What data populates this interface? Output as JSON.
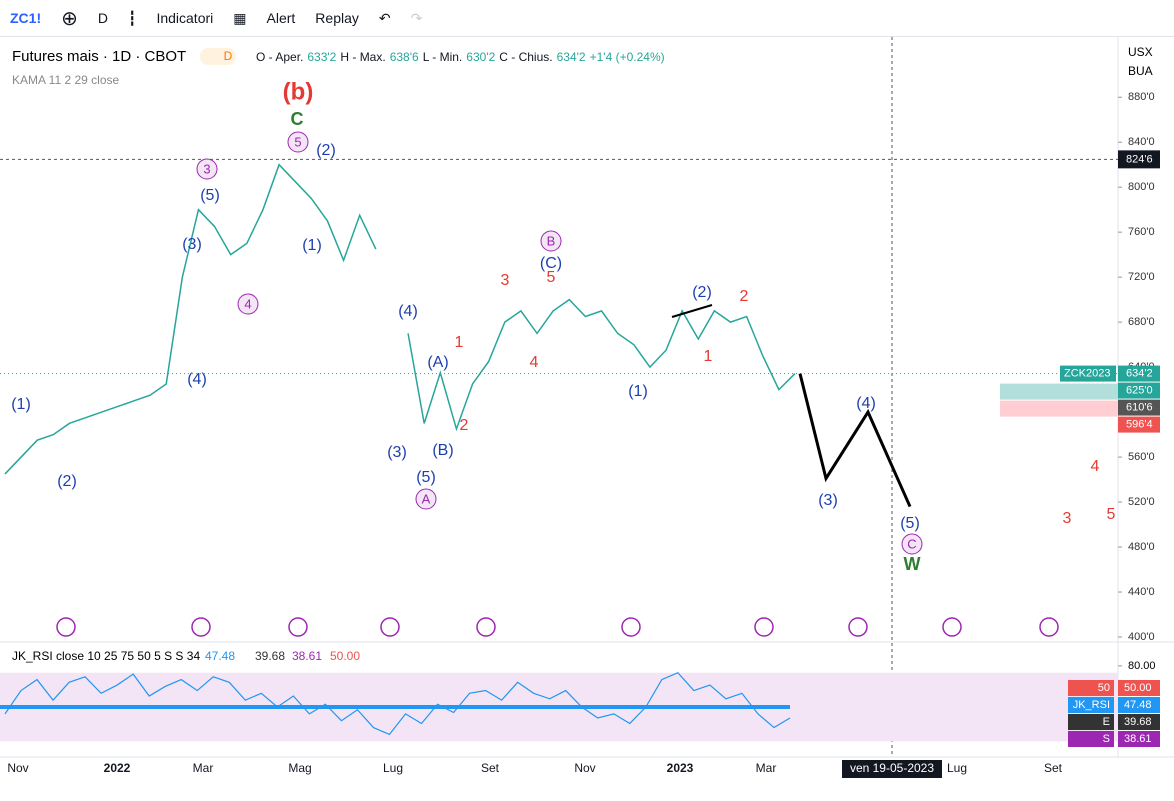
{
  "toolbar": {
    "symbol": "ZC1!",
    "interval": "D",
    "indicators": "Indicatori",
    "alert": "Alert",
    "replay": "Replay"
  },
  "legend": {
    "title": "Futures mais · 1D · CBOT",
    "badge": "D",
    "open_label": "O - Aper.",
    "open": "633'2",
    "high_label": "H - Max.",
    "high": "638'6",
    "low_label": "L - Min.",
    "low": "630'2",
    "close_label": "C - Chius.",
    "close": "634'2",
    "change": "+1'4 (+0.24%)",
    "indicator": "KAMA 11 2 29 close"
  },
  "price_axis": {
    "currency": "USX",
    "unit": "BUA",
    "ylim": [
      392,
      930
    ],
    "ticks": [
      {
        "value": 880,
        "label": "880'0"
      },
      {
        "value": 840,
        "label": "840'0"
      },
      {
        "value": 800,
        "label": "800'0"
      },
      {
        "value": 760,
        "label": "760'0"
      },
      {
        "value": 720,
        "label": "720'0"
      },
      {
        "value": 680,
        "label": "680'0"
      },
      {
        "value": 640,
        "label": "640'0"
      },
      {
        "value": 600,
        "label": "600'0"
      },
      {
        "value": 560,
        "label": "560'0"
      },
      {
        "value": 520,
        "label": "520'0"
      },
      {
        "value": 480,
        "label": "480'0"
      },
      {
        "value": 440,
        "label": "440'0"
      },
      {
        "value": 400,
        "label": "400'0"
      }
    ],
    "crosshair": {
      "value": 824.75,
      "label": "824'6"
    },
    "last": {
      "name": "ZCK2023",
      "value": 634.25,
      "label": "634'2"
    },
    "badges": [
      {
        "value": 625,
        "label": "625'0",
        "color": "#26a69a"
      },
      {
        "value": 610.75,
        "label": "610'6",
        "color": "#555555"
      },
      {
        "value": 596.5,
        "label": "596'4",
        "color": "#ef5350"
      }
    ]
  },
  "price_path": [
    545,
    560,
    575,
    580,
    590,
    595,
    600,
    605,
    610,
    615,
    625,
    720,
    780,
    765,
    740,
    750,
    780,
    820,
    805,
    790,
    770,
    735,
    775,
    745,
    null,
    670,
    590,
    635,
    585,
    625,
    645,
    680,
    690,
    670,
    690,
    700,
    685,
    690,
    670,
    660,
    640,
    655,
    690,
    665,
    690,
    680,
    685,
    650,
    620,
    634.25
  ],
  "projection": [
    634.25,
    541,
    600,
    516
  ],
  "annotations": [
    {
      "text": "(b)",
      "color": "#e53935",
      "big": true
    },
    {
      "text": "C",
      "color": "#2e7d32",
      "big": true
    },
    {
      "text": "5",
      "color": "#9c27b0",
      "circled": true
    },
    {
      "text": "(2)",
      "color": "#1e40af"
    },
    {
      "text": "3",
      "color": "#9c27b0",
      "circled": true
    },
    {
      "text": "(5)",
      "color": "#1e40af"
    },
    {
      "text": "(3)",
      "color": "#1e40af"
    },
    {
      "text": "(1)",
      "color": "#1e40af"
    },
    {
      "text": "4",
      "color": "#9c27b0",
      "circled": true
    },
    {
      "text": "(4)",
      "color": "#1e40af"
    },
    {
      "text": "(1)",
      "color": "#1e40af"
    },
    {
      "text": "(2)",
      "color": "#1e40af"
    },
    {
      "text": "(4)",
      "color": "#1e40af"
    },
    {
      "text": "1",
      "color": "#e53935"
    },
    {
      "text": "(A)",
      "color": "#1e40af"
    },
    {
      "text": "2",
      "color": "#e53935"
    },
    {
      "text": "(3)",
      "color": "#1e40af"
    },
    {
      "text": "(B)",
      "color": "#1e40af"
    },
    {
      "text": "(5)",
      "color": "#1e40af"
    },
    {
      "text": "A",
      "color": "#9c27b0",
      "circled": true
    },
    {
      "text": "3",
      "color": "#e53935"
    },
    {
      "text": "5",
      "color": "#e53935"
    },
    {
      "text": "B",
      "color": "#9c27b0",
      "circled": true
    },
    {
      "text": "(C)",
      "color": "#1e40af"
    },
    {
      "text": "4",
      "color": "#e53935"
    },
    {
      "text": "(1)",
      "color": "#1e40af"
    },
    {
      "text": "(2)",
      "color": "#1e40af"
    },
    {
      "text": "2",
      "color": "#e53935"
    },
    {
      "text": "1",
      "color": "#e53935"
    },
    {
      "text": "(4)",
      "color": "#1e40af"
    },
    {
      "text": "(3)",
      "color": "#1e40af"
    },
    {
      "text": "(5)",
      "color": "#1e40af"
    },
    {
      "text": "C",
      "color": "#9c27b0",
      "circled": true
    },
    {
      "text": "W",
      "color": "#2e7d32",
      "big": true
    },
    {
      "text": "4",
      "color": "#e53935"
    },
    {
      "text": "3",
      "color": "#e53935"
    },
    {
      "text": "5",
      "color": "#e53935"
    }
  ],
  "rsi": {
    "label": "JK_RSI close 10 25 75 50 5 S S 34",
    "v1": "47.48",
    "v2": "39.68",
    "v3": "38.61",
    "v4": "50.00",
    "ylim": [
      15,
      85
    ],
    "ticks": [
      {
        "value": 80,
        "label": "80.00"
      }
    ],
    "values": [
      45,
      62,
      70,
      55,
      68,
      72,
      60,
      66,
      74,
      58,
      65,
      70,
      62,
      72,
      68,
      55,
      60,
      50,
      58,
      45,
      52,
      40,
      48,
      35,
      30,
      45,
      38,
      52,
      46,
      60,
      62,
      55,
      68,
      60,
      56,
      62,
      50,
      42,
      45,
      38,
      50,
      70,
      75,
      62,
      66,
      56,
      60,
      45,
      35,
      42
    ],
    "badges": [
      {
        "text": "50",
        "value": "50.00",
        "color": "#ef5350"
      },
      {
        "text": "JK_RSI",
        "value": "47.48",
        "color": "#2196f3"
      },
      {
        "text": "E",
        "value": "39.68",
        "color": "#333333"
      },
      {
        "text": "S",
        "value": "38.61",
        "color": "#9c27b0"
      }
    ]
  },
  "time_axis": [
    "Nov",
    "2022",
    "Mar",
    "Mag",
    "Lug",
    "Set",
    "Nov",
    "2023",
    "Mar",
    "ven 19-05-2023",
    "Lug",
    "Set"
  ]
}
